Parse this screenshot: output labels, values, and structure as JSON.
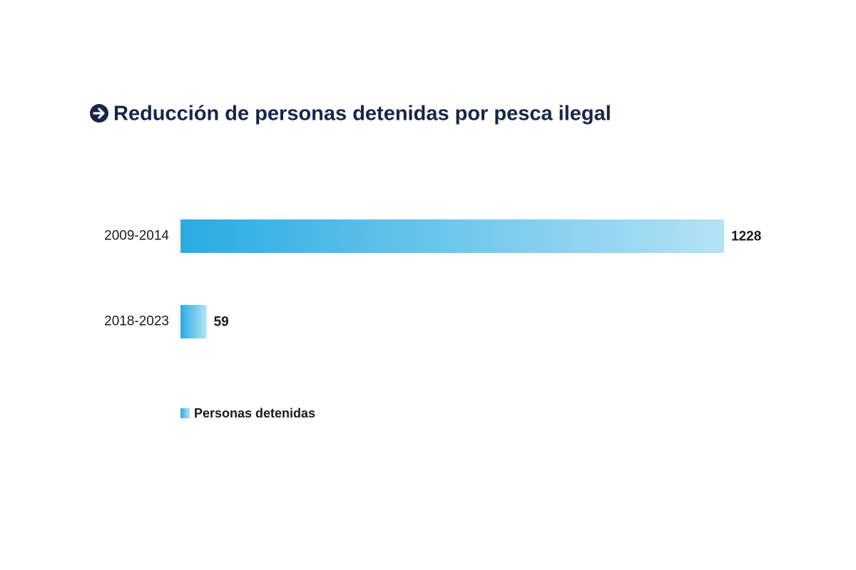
{
  "chart_data": {
    "type": "bar",
    "orientation": "horizontal",
    "title": "Reducción de personas detenidas por pesca ilegal",
    "categories": [
      "2009-2014",
      "2018-2023"
    ],
    "series": [
      {
        "name": "Personas detenidas",
        "color": "#29abe2",
        "values": [
          1228,
          59
        ]
      }
    ]
  }
}
